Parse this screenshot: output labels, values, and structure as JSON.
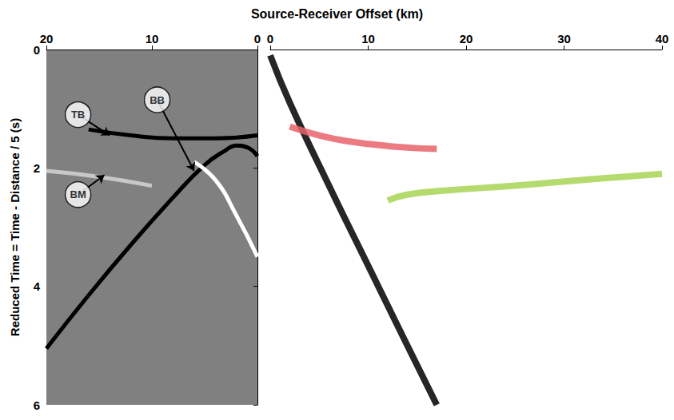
{
  "chart_data": [
    {
      "type": "line",
      "xlabel": "Source-Receiver Offset (km)",
      "ylabel": "Reduced Time = Time - Distance / 5 (s)",
      "xlim": [
        20,
        0
      ],
      "xticks": [
        20,
        10,
        0
      ],
      "ylim": [
        0,
        6
      ],
      "yticks": [
        0,
        2,
        4,
        6
      ],
      "grid": false,
      "tick_labels": true,
      "series": [
        {
          "color": "#000000",
          "line_style": "solid",
          "values": [
            [
              20,
              5.05
            ],
            [
              16,
              4.15
            ],
            [
              12,
              3.3
            ],
            [
              8,
              2.5
            ],
            [
              5,
              1.95
            ],
            [
              3,
              1.7
            ],
            [
              2,
              1.62
            ],
            [
              1,
              1.65
            ],
            [
              0,
              1.8
            ]
          ]
        },
        {
          "color": "#000000",
          "line_style": "solid",
          "values": [
            [
              16,
              1.35
            ],
            [
              12,
              1.45
            ],
            [
              8,
              1.5
            ],
            [
              4,
              1.5
            ],
            [
              0,
              1.45
            ]
          ]
        },
        {
          "color": "#c8c8c8",
          "line_style": "solid",
          "values": [
            [
              20,
              2.05
            ],
            [
              15,
              2.15
            ],
            [
              10,
              2.3
            ]
          ]
        },
        {
          "color": "#ffffff",
          "line_style": "solid",
          "values": [
            [
              6,
              1.9
            ],
            [
              4,
              2.2
            ],
            [
              2,
              2.8
            ],
            [
              0,
              3.5
            ]
          ]
        }
      ],
      "annotations": [
        {
          "text": "TB",
          "x": 17,
          "y": 1.1,
          "arrow_to": [
            14,
            1.45
          ]
        },
        {
          "text": "BB",
          "x": 9.5,
          "y": 0.85,
          "arrow_to": [
            6,
            2.05
          ]
        },
        {
          "text": "BM",
          "x": 17,
          "y": 2.45,
          "arrow_to": [
            14.5,
            2.12
          ]
        }
      ]
    },
    {
      "type": "line",
      "xlim": [
        0,
        40
      ],
      "xticks": [
        0,
        10,
        20,
        30,
        40
      ],
      "ylim": [
        0,
        6
      ],
      "yticks": [
        0,
        2,
        4,
        6
      ],
      "grid": false,
      "tick_labels": "x",
      "series": [
        {
          "color": "#000000",
          "line_style": "solid",
          "values": [
            [
              0,
              0.1
            ],
            [
              2,
              0.9
            ],
            [
              6,
              2.3
            ],
            [
              10,
              3.65
            ],
            [
              14,
              5.0
            ],
            [
              17,
              6.0
            ]
          ]
        },
        {
          "color": "#e8646a",
          "line_style": "solid",
          "values": [
            [
              2,
              1.3
            ],
            [
              5,
              1.45
            ],
            [
              8,
              1.55
            ],
            [
              12,
              1.63
            ],
            [
              17,
              1.68
            ]
          ]
        },
        {
          "color": "#a8d454",
          "line_style": "solid",
          "values": [
            [
              12,
              2.55
            ],
            [
              14,
              2.45
            ],
            [
              18,
              2.38
            ],
            [
              25,
              2.3
            ],
            [
              32,
              2.2
            ],
            [
              40,
              2.1
            ]
          ]
        }
      ]
    }
  ]
}
